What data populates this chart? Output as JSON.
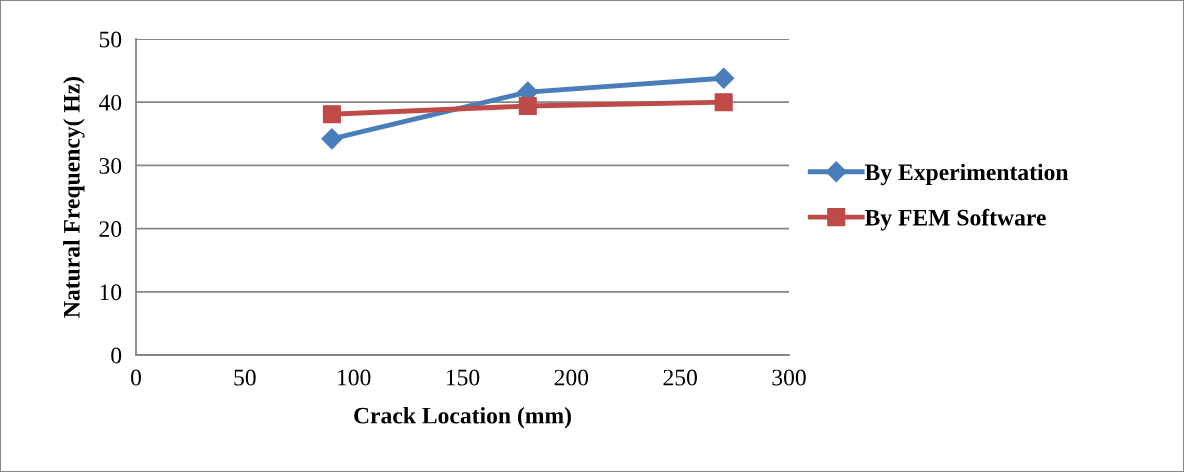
{
  "chart_data": {
    "type": "line",
    "xlabel": "Crack Location (mm)",
    "ylabel": "Natural Frequency( Hz)",
    "x": [
      90,
      180,
      270
    ],
    "series": [
      {
        "name": "By Experimentation",
        "color": "#4a7ebb",
        "marker": "diamond",
        "values": [
          34.2,
          41.6,
          43.8
        ]
      },
      {
        "name": "By FEM Software",
        "color": "#be4b48",
        "marker": "square",
        "values": [
          38.1,
          39.4,
          40.0
        ]
      }
    ],
    "xlim": [
      0,
      300
    ],
    "xticks": [
      0,
      50,
      100,
      150,
      200,
      250,
      300
    ],
    "ylim": [
      0,
      50
    ],
    "yticks": [
      0,
      10,
      20,
      30,
      40,
      50
    ],
    "grid": "y",
    "legend": "right",
    "line_style": "solid"
  }
}
